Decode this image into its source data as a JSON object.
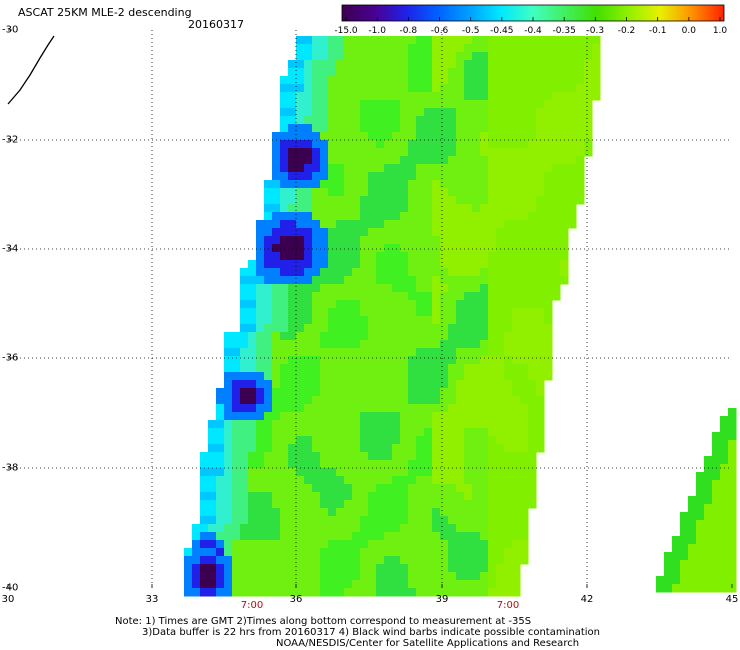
{
  "header": {
    "title": "ASCAT 25KM MLE-2 descending",
    "date": "20160317"
  },
  "colorbar": {
    "labels": [
      "-15.0",
      "-1.0",
      "-0.8",
      "-0.6",
      "-0.5",
      "-0.45",
      "-0.4",
      "-0.35",
      "-0.3",
      "-0.2",
      "-0.1",
      "0.0",
      "1.0"
    ],
    "colors": [
      "#3c0050",
      "#4a0090",
      "#2020e8",
      "#0060ff",
      "#00a0ff",
      "#00e8ff",
      "#40ffc0",
      "#40f060",
      "#40e000",
      "#90f000",
      "#e8f000",
      "#ff9000",
      "#ff2000"
    ]
  },
  "axes": {
    "y_labels": [
      "-30",
      "-32",
      "-34",
      "-36",
      "-38",
      "-40"
    ],
    "x_labels": [
      "30",
      "33",
      "36",
      "39",
      "42",
      "45"
    ],
    "time_labels": [
      "7:00",
      "7:00"
    ]
  },
  "map_data": {
    "projection": "lat-lon",
    "lon_range": [
      30,
      45
    ],
    "lat_range": [
      -40,
      -30
    ],
    "swath_description": "descending swath of MLE-2 values mostly -0.35 to -0.2 with low values (-15 to -0.5) along western coastal edge"
  },
  "notes": {
    "line1": "Note: 1) Times are GMT 2)Times along bottom correspond to measurement at -35S",
    "line2": "3)Data buffer is 22 hrs from 20160317 4) Black wind barbs indicate possible contamination",
    "line3": "NOAA/NESDIS/Center for Satellite Applications and Research"
  }
}
